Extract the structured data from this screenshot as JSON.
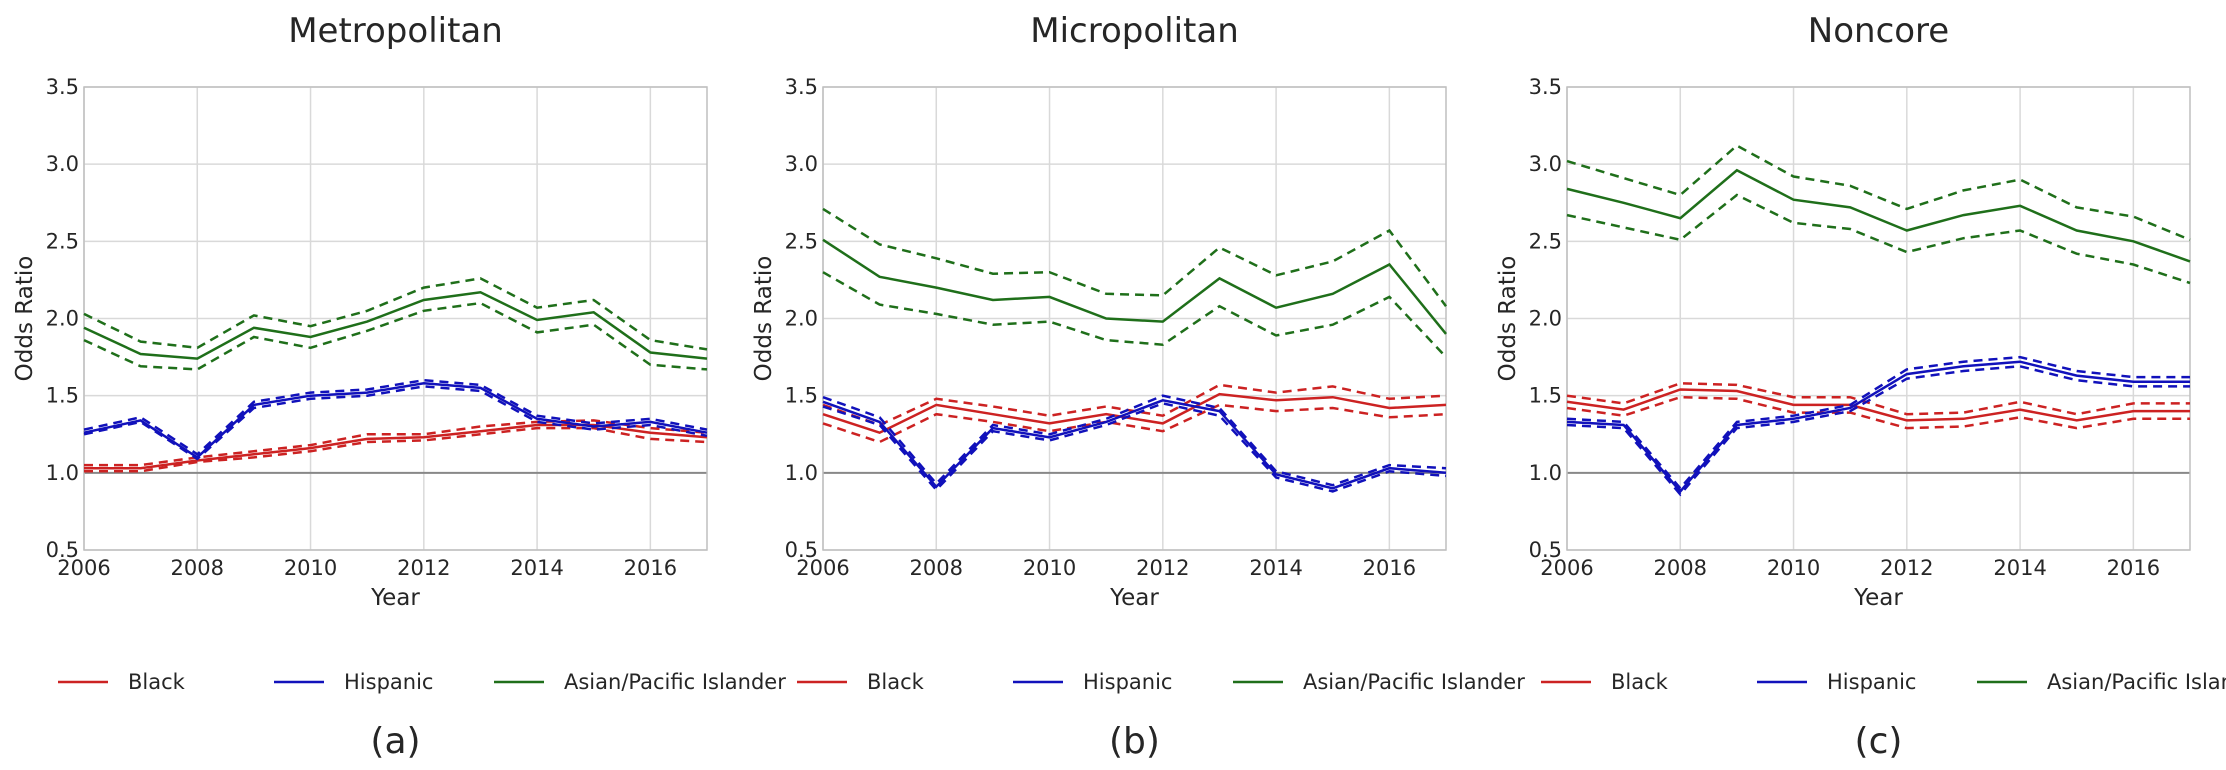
{
  "figure": {
    "background": "#ffffff"
  },
  "colors": {
    "Black": "#cc2222",
    "Hispanic": "#1111bb",
    "Asian/Pacific Islander": "#1f6f1a",
    "reference": "#888888",
    "grid": "#d9d9d9",
    "frame": "#bfbfbf"
  },
  "chart_data": [
    {
      "type": "line",
      "title": "Metropolitan",
      "xlabel": "Year",
      "ylabel": "Odds Ratio",
      "caption": "(a)",
      "xlim": [
        2006,
        2017
      ],
      "ylim": [
        0.5,
        3.5
      ],
      "xticks": [
        2006,
        2008,
        2010,
        2012,
        2014,
        2016
      ],
      "xtick_labels": [
        "2006",
        "2008",
        "2010",
        "2012",
        "2014",
        "2016"
      ],
      "yticks": [
        0.5,
        1.0,
        1.5,
        2.0,
        2.5,
        3.0,
        3.5
      ],
      "ytick_labels": [
        "0.5",
        "1.0",
        "1.5",
        "2.0",
        "2.5",
        "3.0",
        "3.5"
      ],
      "grid": true,
      "reference_line": 1.0,
      "legend": [
        "Black",
        "Hispanic",
        "Asian/Pacific Islander"
      ],
      "legend_position": "bottom",
      "x": [
        2006,
        2007,
        2008,
        2009,
        2010,
        2011,
        2012,
        2013,
        2014,
        2015,
        2016,
        2017
      ],
      "series": [
        {
          "name": "Black",
          "values": [
            1.03,
            1.03,
            1.08,
            1.12,
            1.16,
            1.22,
            1.23,
            1.27,
            1.31,
            1.31,
            1.26,
            1.23
          ],
          "lower": [
            1.01,
            1.01,
            1.07,
            1.1,
            1.14,
            1.2,
            1.21,
            1.25,
            1.29,
            1.29,
            1.22,
            1.2
          ],
          "upper": [
            1.05,
            1.05,
            1.1,
            1.14,
            1.18,
            1.25,
            1.25,
            1.3,
            1.33,
            1.34,
            1.29,
            1.26
          ]
        },
        {
          "name": "Hispanic",
          "values": [
            1.26,
            1.34,
            1.1,
            1.44,
            1.5,
            1.52,
            1.58,
            1.55,
            1.35,
            1.3,
            1.33,
            1.26
          ],
          "lower": [
            1.25,
            1.33,
            1.09,
            1.42,
            1.48,
            1.5,
            1.56,
            1.53,
            1.33,
            1.28,
            1.31,
            1.24
          ],
          "upper": [
            1.28,
            1.36,
            1.12,
            1.46,
            1.52,
            1.54,
            1.6,
            1.57,
            1.37,
            1.32,
            1.35,
            1.28
          ]
        },
        {
          "name": "Asian/Pacific Islander",
          "values": [
            1.94,
            1.77,
            1.74,
            1.94,
            1.88,
            1.98,
            2.12,
            2.17,
            1.99,
            2.04,
            1.78,
            1.74
          ],
          "lower": [
            1.86,
            1.69,
            1.67,
            1.88,
            1.81,
            1.92,
            2.05,
            2.1,
            1.91,
            1.96,
            1.7,
            1.67
          ],
          "upper": [
            2.03,
            1.85,
            1.81,
            2.02,
            1.95,
            2.05,
            2.2,
            2.26,
            2.07,
            2.12,
            1.86,
            1.8
          ]
        }
      ]
    },
    {
      "type": "line",
      "title": "Micropolitan",
      "xlabel": "Year",
      "ylabel": "Odds Ratio",
      "caption": "(b)",
      "xlim": [
        2006,
        2017
      ],
      "ylim": [
        0.5,
        3.5
      ],
      "xticks": [
        2006,
        2008,
        2010,
        2012,
        2014,
        2016
      ],
      "xtick_labels": [
        "2006",
        "2008",
        "2010",
        "2012",
        "2014",
        "2016"
      ],
      "yticks": [
        0.5,
        1.0,
        1.5,
        2.0,
        2.5,
        3.0,
        3.5
      ],
      "ytick_labels": [
        "0.5",
        "1.0",
        "1.5",
        "2.0",
        "2.5",
        "3.0",
        "3.5"
      ],
      "grid": true,
      "reference_line": 1.0,
      "legend": [
        "Black",
        "Hispanic",
        "Asian/Pacific Islander"
      ],
      "legend_position": "bottom",
      "x": [
        2006,
        2007,
        2008,
        2009,
        2010,
        2011,
        2012,
        2013,
        2014,
        2015,
        2016,
        2017
      ],
      "series": [
        {
          "name": "Black",
          "values": [
            1.38,
            1.26,
            1.44,
            1.38,
            1.32,
            1.38,
            1.32,
            1.51,
            1.47,
            1.49,
            1.42,
            1.44
          ],
          "lower": [
            1.32,
            1.2,
            1.38,
            1.33,
            1.27,
            1.33,
            1.27,
            1.44,
            1.4,
            1.42,
            1.36,
            1.38
          ],
          "upper": [
            1.44,
            1.31,
            1.48,
            1.43,
            1.37,
            1.43,
            1.37,
            1.57,
            1.52,
            1.56,
            1.48,
            1.5
          ]
        },
        {
          "name": "Hispanic",
          "values": [
            1.46,
            1.33,
            0.91,
            1.29,
            1.23,
            1.33,
            1.47,
            1.4,
            0.99,
            0.9,
            1.03,
            1.0
          ],
          "lower": [
            1.43,
            1.31,
            0.89,
            1.27,
            1.21,
            1.31,
            1.45,
            1.37,
            0.97,
            0.88,
            1.01,
            0.98
          ],
          "upper": [
            1.49,
            1.36,
            0.93,
            1.31,
            1.25,
            1.35,
            1.5,
            1.42,
            1.01,
            0.92,
            1.05,
            1.03
          ]
        },
        {
          "name": "Asian/Pacific Islander",
          "values": [
            2.51,
            2.27,
            2.2,
            2.12,
            2.14,
            2.0,
            1.98,
            2.26,
            2.07,
            2.16,
            2.35,
            1.9
          ],
          "lower": [
            2.3,
            2.09,
            2.03,
            1.96,
            1.98,
            1.86,
            1.83,
            2.08,
            1.89,
            1.96,
            2.14,
            1.75
          ],
          "upper": [
            2.71,
            2.48,
            2.39,
            2.29,
            2.3,
            2.16,
            2.15,
            2.46,
            2.28,
            2.37,
            2.57,
            2.08
          ]
        }
      ]
    },
    {
      "type": "line",
      "title": "Noncore",
      "xlabel": "Year",
      "ylabel": "Odds Ratio",
      "caption": "(c)",
      "xlim": [
        2006,
        2017
      ],
      "ylim": [
        0.5,
        3.5
      ],
      "xticks": [
        2006,
        2008,
        2010,
        2012,
        2014,
        2016
      ],
      "xtick_labels": [
        "2006",
        "2008",
        "2010",
        "2012",
        "2014",
        "2016"
      ],
      "yticks": [
        0.5,
        1.0,
        1.5,
        2.0,
        2.5,
        3.0,
        3.5
      ],
      "ytick_labels": [
        "0.5",
        "1.0",
        "1.5",
        "2.0",
        "2.5",
        "3.0",
        "3.5"
      ],
      "grid": true,
      "reference_line": 1.0,
      "legend": [
        "Black",
        "Hispanic",
        "Asian/Pacific Islander"
      ],
      "legend_position": "bottom",
      "x": [
        2006,
        2007,
        2008,
        2009,
        2010,
        2011,
        2012,
        2013,
        2014,
        2015,
        2016,
        2017
      ],
      "series": [
        {
          "name": "Black",
          "values": [
            1.46,
            1.41,
            1.54,
            1.53,
            1.44,
            1.44,
            1.34,
            1.35,
            1.41,
            1.34,
            1.4,
            1.4
          ],
          "lower": [
            1.42,
            1.37,
            1.49,
            1.48,
            1.39,
            1.39,
            1.29,
            1.3,
            1.36,
            1.29,
            1.35,
            1.35
          ],
          "upper": [
            1.5,
            1.45,
            1.58,
            1.57,
            1.49,
            1.49,
            1.38,
            1.39,
            1.46,
            1.38,
            1.45,
            1.45
          ]
        },
        {
          "name": "Hispanic",
          "values": [
            1.33,
            1.31,
            0.88,
            1.31,
            1.35,
            1.42,
            1.64,
            1.69,
            1.72,
            1.63,
            1.59,
            1.59
          ],
          "lower": [
            1.31,
            1.29,
            0.86,
            1.29,
            1.33,
            1.4,
            1.61,
            1.66,
            1.69,
            1.6,
            1.56,
            1.56
          ],
          "upper": [
            1.35,
            1.33,
            0.9,
            1.33,
            1.37,
            1.44,
            1.67,
            1.72,
            1.75,
            1.66,
            1.62,
            1.62
          ]
        },
        {
          "name": "Asian/Pacific Islander",
          "values": [
            2.84,
            2.75,
            2.65,
            2.96,
            2.77,
            2.72,
            2.57,
            2.67,
            2.73,
            2.57,
            2.5,
            2.37
          ],
          "lower": [
            2.67,
            2.59,
            2.51,
            2.8,
            2.62,
            2.58,
            2.43,
            2.52,
            2.57,
            2.42,
            2.35,
            2.23
          ],
          "upper": [
            3.02,
            2.91,
            2.8,
            3.12,
            2.92,
            2.86,
            2.71,
            2.83,
            2.9,
            2.72,
            2.66,
            2.51
          ]
        }
      ]
    }
  ]
}
